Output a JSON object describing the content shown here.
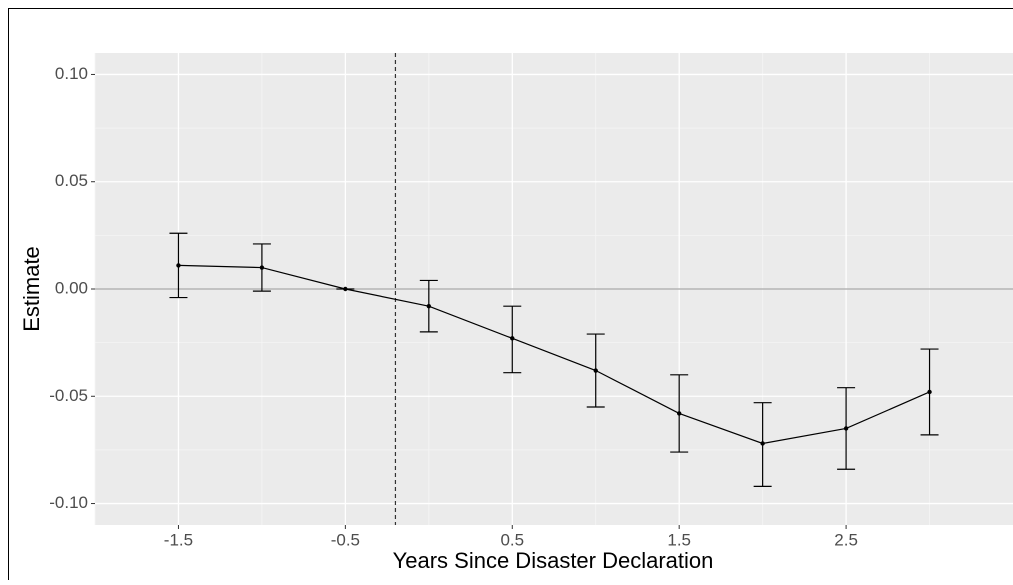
{
  "chart_data": {
    "type": "errorbar-line",
    "x_label": "Years Since Disaster Declaration",
    "y_label": "Estimate",
    "x": [
      -1.5,
      -1,
      -0.5,
      0,
      0.5,
      1,
      1.5,
      2,
      2.5,
      3
    ],
    "values": [
      0.011,
      0.01,
      0,
      -0.008,
      -0.023,
      -0.038,
      -0.058,
      -0.072,
      -0.065,
      -0.048
    ],
    "lower": [
      -0.004,
      -0.001,
      0,
      -0.02,
      -0.039,
      -0.055,
      -0.076,
      -0.092,
      -0.084,
      -0.068
    ],
    "upper": [
      0.026,
      0.021,
      0,
      0.004,
      -0.008,
      -0.021,
      -0.04,
      -0.053,
      -0.046,
      -0.028
    ],
    "color": "#000000",
    "xlim": [
      -2.0,
      3.5
    ],
    "ylim": [
      -0.11,
      0.11
    ],
    "xticks": [
      -1.5,
      -0.5,
      0.5,
      1.5,
      2.5
    ],
    "yticks": [
      {
        "value": 0.1,
        "label": "0.10"
      },
      {
        "value": 0.05,
        "label": "0.05"
      },
      {
        "value": 0,
        "label": "0.00"
      },
      {
        "value": -0.05,
        "label": "-0.05"
      },
      {
        "value": -0.1,
        "label": "-0.10"
      }
    ],
    "hline": 0,
    "vline": -0.2,
    "grid": true
  }
}
